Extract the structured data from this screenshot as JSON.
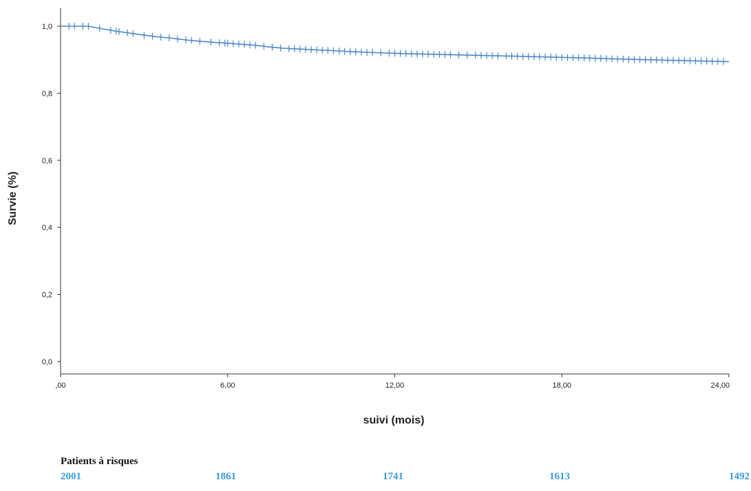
{
  "chart_data": {
    "type": "line",
    "title": "",
    "xlabel": "suivi (mois)",
    "ylabel": "Survie (%)",
    "xlim": [
      0,
      24
    ],
    "ylim": [
      0,
      1
    ],
    "x_ticks": [
      0,
      6,
      12,
      18,
      24
    ],
    "x_tick_labels": [
      ",00",
      "6,00",
      "12,00",
      "18,00",
      "24,00"
    ],
    "y_ticks": [
      0,
      0.2,
      0.4,
      0.6,
      0.8,
      1.0
    ],
    "y_tick_labels": [
      "0,0",
      "0,2",
      "0,4",
      "0,6",
      "0,8",
      "1,0"
    ],
    "grid": false,
    "line_color": "#4a86c8",
    "series": [
      {
        "x": [
          0,
          1,
          1.5,
          2,
          2.5,
          3,
          3.5,
          4,
          4.5,
          5,
          5.5,
          6,
          6.5,
          7,
          7.5,
          8,
          9,
          10,
          11,
          12,
          13,
          14,
          15,
          16,
          17,
          18,
          19,
          20,
          21,
          22,
          23,
          24
        ],
        "y": [
          1.0,
          1.0,
          0.992,
          0.985,
          0.979,
          0.973,
          0.968,
          0.964,
          0.959,
          0.955,
          0.952,
          0.949,
          0.946,
          0.943,
          0.938,
          0.934,
          0.93,
          0.926,
          0.922,
          0.919,
          0.917,
          0.915,
          0.913,
          0.911,
          0.909,
          0.907,
          0.905,
          0.902,
          0.9,
          0.898,
          0.896,
          0.894
        ]
      }
    ],
    "censor_x": [
      0.3,
      0.5,
      0.8,
      1.0,
      1.4,
      1.8,
      2.0,
      2.1,
      2.4,
      2.6,
      3.0,
      3.3,
      3.6,
      3.9,
      4.2,
      4.5,
      4.7,
      5.0,
      5.4,
      5.7,
      5.9,
      6.0,
      6.2,
      6.4,
      6.6,
      6.8,
      7.0,
      7.3,
      7.6,
      7.9,
      8.2,
      8.4,
      8.6,
      8.8,
      9.0,
      9.2,
      9.4,
      9.6,
      9.8,
      10.0,
      10.2,
      10.4,
      10.6,
      10.8,
      11.0,
      11.2,
      11.5,
      11.8,
      12.0,
      12.2,
      12.4,
      12.6,
      12.8,
      13.0,
      13.2,
      13.4,
      13.6,
      13.8,
      14.0,
      14.3,
      14.6,
      14.9,
      15.1,
      15.3,
      15.5,
      15.7,
      16.0,
      16.2,
      16.4,
      16.6,
      16.8,
      17.0,
      17.2,
      17.4,
      17.6,
      17.8,
      18.0,
      18.2,
      18.4,
      18.6,
      18.8,
      19.0,
      19.2,
      19.4,
      19.6,
      19.8,
      20.0,
      20.2,
      20.4,
      20.6,
      20.8,
      21.0,
      21.2,
      21.4,
      21.6,
      21.8,
      22.0,
      22.2,
      22.4,
      22.6,
      22.8,
      23.0,
      23.2,
      23.4,
      23.6,
      23.8
    ]
  },
  "at_risk": {
    "title": "Patients à risques",
    "color": "#3a9ad9",
    "counts": [
      "2001",
      "1861",
      "1741",
      "1613",
      "1492"
    ]
  }
}
